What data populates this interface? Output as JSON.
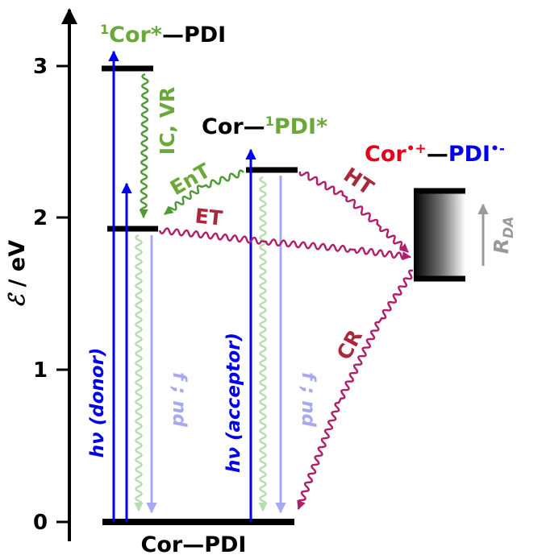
{
  "axis": {
    "label_symbol": "ℰ",
    "label_unit": " / eV",
    "ticks": [
      "0",
      "1",
      "2",
      "3"
    ]
  },
  "states": {
    "ground": "Cor—PDI",
    "donor_excited": {
      "sup": "1",
      "main": "Cor*",
      "suffix": "—PDI"
    },
    "acceptor_excited": {
      "prefix": "Cor—",
      "sup": "1",
      "main": "PDI*"
    },
    "charge_separated": {
      "cor": "Cor",
      "cor_sup": "•+",
      "dash": "—",
      "pdi": "PDI",
      "pdi_sup": "•-"
    }
  },
  "processes": {
    "ic_vr": "IC, VR",
    "ent": "EnT",
    "et": "ET",
    "ht": "HT",
    "cr": "CR",
    "rda": "R",
    "rda_sub": "DA",
    "hv_donor": "hν (donor)",
    "hv_acceptor": "hν (acceptor)",
    "decay": "f ; nd"
  },
  "colors": {
    "donor": "#6aa839",
    "acceptor": "#0000ee",
    "cation": "#e6001a",
    "process_red": "#a8283c",
    "magenta": "#b0206a",
    "green_wave": "#4e9a3a",
    "light_green": "#b6dcb0",
    "light_blue": "#a8a8f0",
    "gray": "#999999"
  }
}
